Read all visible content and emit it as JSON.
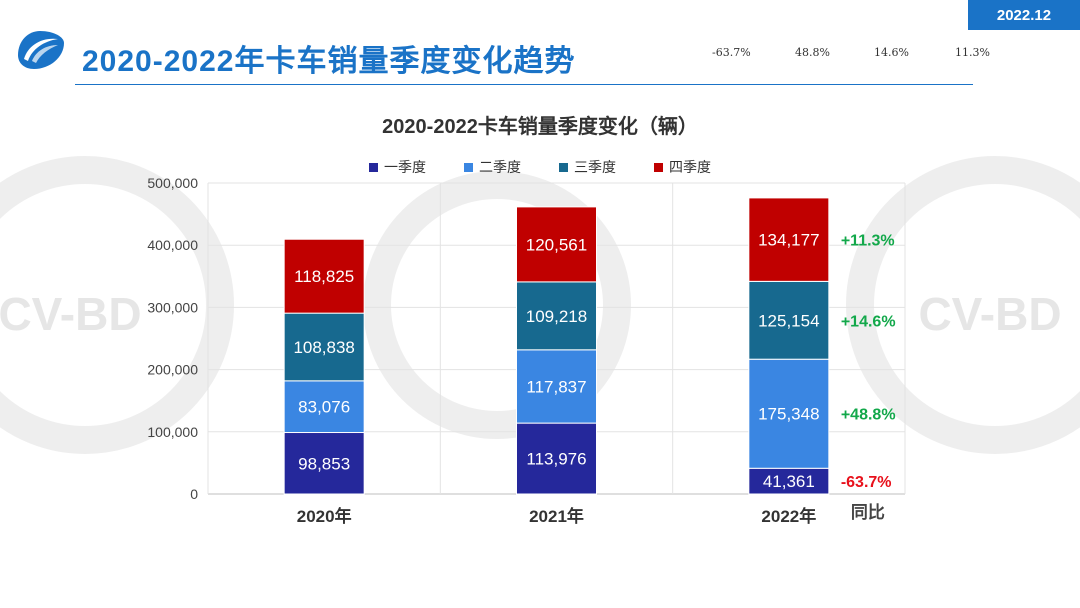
{
  "header": {
    "date_badge": "2022.12",
    "title": "2020-2022年卡车销量季度变化趋势",
    "stray_values": [
      "-63.7%",
      "48.8%",
      "14.6%",
      "11.3%"
    ]
  },
  "watermark": {
    "text": "CV-BD"
  },
  "colors": {
    "accent": "#1a73c7",
    "q1": "#25289b",
    "q2": "#3a86e2",
    "q3": "#17698f",
    "q4": "#c00000",
    "positive": "#12a84a",
    "negative": "#e8101b"
  },
  "chart_data": {
    "type": "bar",
    "stacked": true,
    "title": "2020-2022卡车销量季度变化（辆）",
    "categories": [
      "2020年",
      "2021年",
      "2022年"
    ],
    "series": [
      {
        "name": "一季度",
        "values": [
          98853,
          113976,
          41361
        ]
      },
      {
        "name": "二季度",
        "values": [
          83076,
          117837,
          175348
        ]
      },
      {
        "name": "三季度",
        "values": [
          108838,
          109218,
          125154
        ]
      },
      {
        "name": "四季度",
        "values": [
          118825,
          120561,
          134177
        ]
      }
    ],
    "data_labels": [
      [
        "98,853",
        "113,976",
        "41,361"
      ],
      [
        "83,076",
        "117,837",
        "175,348"
      ],
      [
        "108,838",
        "109,218",
        "125,154"
      ],
      [
        "118,825",
        "120,561",
        "134,177"
      ]
    ],
    "ylim": [
      0,
      500000
    ],
    "yticks": [
      0,
      100000,
      200000,
      300000,
      400000,
      500000
    ],
    "ytick_labels": [
      "0",
      "100,000",
      "200,000",
      "300,000",
      "400,000",
      "500,000"
    ],
    "legend_position": "top",
    "grid": true,
    "yoy_header": "同比",
    "yoy": [
      "-63.7%",
      "+48.8%",
      "+14.6%",
      "+11.3%"
    ]
  }
}
